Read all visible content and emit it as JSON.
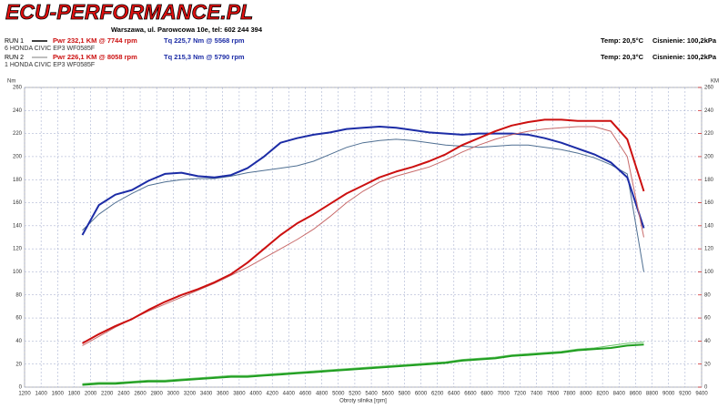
{
  "header": {
    "logo": "ECU-PERFORMANCE.PL",
    "address": "Warszawa, ul. Parowcowa 10e, tel: 602 244 394"
  },
  "runs": [
    {
      "label": "RUN 1",
      "power": "Pwr  232,1 KM @ 7744 rpm",
      "torque": "Tq 225,7 Nm @ 5568 rpm",
      "vehicle": "6 HONDA CIVIC EP3 WF0585F",
      "temp": "Temp: 20,5°C",
      "pressure": "Cisnienie: 100,2kPa"
    },
    {
      "label": "RUN 2",
      "power": "Pwr  226,1 KM @ 8058 rpm",
      "torque": "Tq 215,3 Nm @ 5790 rpm",
      "vehicle": "1 HONDA CIVIC EP3 WF0585F",
      "temp": "Temp: 20,3°C",
      "pressure": "Cisnienie: 100,2kPa"
    }
  ],
  "chart_data": {
    "type": "line",
    "xlabel": "Obroty silnika [rpm]",
    "ylabel": "Nm",
    "y2label": "KM",
    "grid": true,
    "xlim": [
      1200,
      9400
    ],
    "ylim": [
      0,
      260
    ],
    "y2lim": [
      0,
      260
    ],
    "xticks": [
      1200,
      1400,
      1600,
      1800,
      2000,
      2200,
      2400,
      2600,
      2800,
      3000,
      3200,
      3400,
      3600,
      3800,
      4000,
      4200,
      4400,
      4600,
      4800,
      5000,
      5200,
      5400,
      5600,
      5800,
      6000,
      6200,
      6400,
      6600,
      6800,
      7000,
      7200,
      7400,
      7600,
      7800,
      8000,
      8200,
      8400,
      8600,
      8800,
      9000,
      9200,
      9400
    ],
    "yticks": [
      0,
      20,
      40,
      60,
      80,
      100,
      120,
      140,
      160,
      180,
      200,
      220,
      240,
      260
    ],
    "y2ticks": [
      0,
      20,
      40,
      60,
      80,
      100,
      120,
      140,
      160,
      180,
      200,
      220,
      240,
      260
    ],
    "x": [
      1900,
      2100,
      2300,
      2500,
      2700,
      2900,
      3100,
      3300,
      3500,
      3700,
      3900,
      4100,
      4300,
      4500,
      4700,
      4900,
      5100,
      5300,
      5500,
      5700,
      5900,
      6100,
      6300,
      6500,
      6700,
      6900,
      7100,
      7300,
      7500,
      7700,
      7900,
      8100,
      8300,
      8500,
      8700
    ],
    "series": [
      {
        "color": "#4f6f92",
        "width": 1,
        "values": [
          136,
          150,
          160,
          168,
          175,
          178,
          180,
          181,
          181,
          183,
          186,
          188,
          190,
          192,
          196,
          202,
          208,
          212,
          214,
          215,
          214,
          212,
          210,
          209,
          208,
          209,
          210,
          210,
          208,
          206,
          203,
          199,
          193,
          185,
          100
        ]
      },
      {
        "color": "#1c2ca6",
        "width": 2,
        "values": [
          132,
          158,
          167,
          171,
          179,
          185,
          186,
          183,
          182,
          184,
          190,
          200,
          212,
          216,
          219,
          221,
          224,
          225,
          226,
          225,
          223,
          221,
          220,
          219,
          220,
          220,
          220,
          219,
          216,
          212,
          207,
          202,
          195,
          182,
          138
        ]
      },
      {
        "color": "#c86a6a",
        "width": 1,
        "axis": "y2",
        "values": [
          36,
          44,
          52,
          59,
          66,
          72,
          78,
          84,
          90,
          97,
          104,
          112,
          120,
          128,
          137,
          148,
          160,
          170,
          178,
          183,
          187,
          191,
          197,
          204,
          210,
          215,
          219,
          222,
          224,
          225,
          226,
          226,
          222,
          200,
          130
        ]
      },
      {
        "color": "#cc1010",
        "width": 2,
        "axis": "y2",
        "values": [
          38,
          46,
          53,
          59,
          67,
          74,
          80,
          85,
          91,
          98,
          108,
          120,
          132,
          142,
          150,
          159,
          168,
          175,
          182,
          187,
          191,
          196,
          202,
          210,
          216,
          222,
          227,
          230,
          232,
          232,
          231,
          231,
          231,
          215,
          170
        ]
      },
      {
        "color": "#66c266",
        "width": 1,
        "axis": "y2",
        "values": [
          3,
          4,
          4,
          5,
          6,
          6,
          7,
          8,
          9,
          10,
          10,
          11,
          12,
          13,
          14,
          15,
          16,
          17,
          18,
          19,
          20,
          21,
          22,
          24,
          25,
          26,
          28,
          29,
          30,
          31,
          33,
          34,
          36,
          38,
          39
        ]
      },
      {
        "color": "#1f9e1f",
        "width": 2,
        "axis": "y2",
        "values": [
          2,
          3,
          3,
          4,
          5,
          5,
          6,
          7,
          8,
          9,
          9,
          10,
          11,
          12,
          13,
          14,
          15,
          16,
          17,
          18,
          19,
          20,
          21,
          23,
          24,
          25,
          27,
          28,
          29,
          30,
          32,
          33,
          34,
          36,
          37
        ]
      }
    ]
  }
}
